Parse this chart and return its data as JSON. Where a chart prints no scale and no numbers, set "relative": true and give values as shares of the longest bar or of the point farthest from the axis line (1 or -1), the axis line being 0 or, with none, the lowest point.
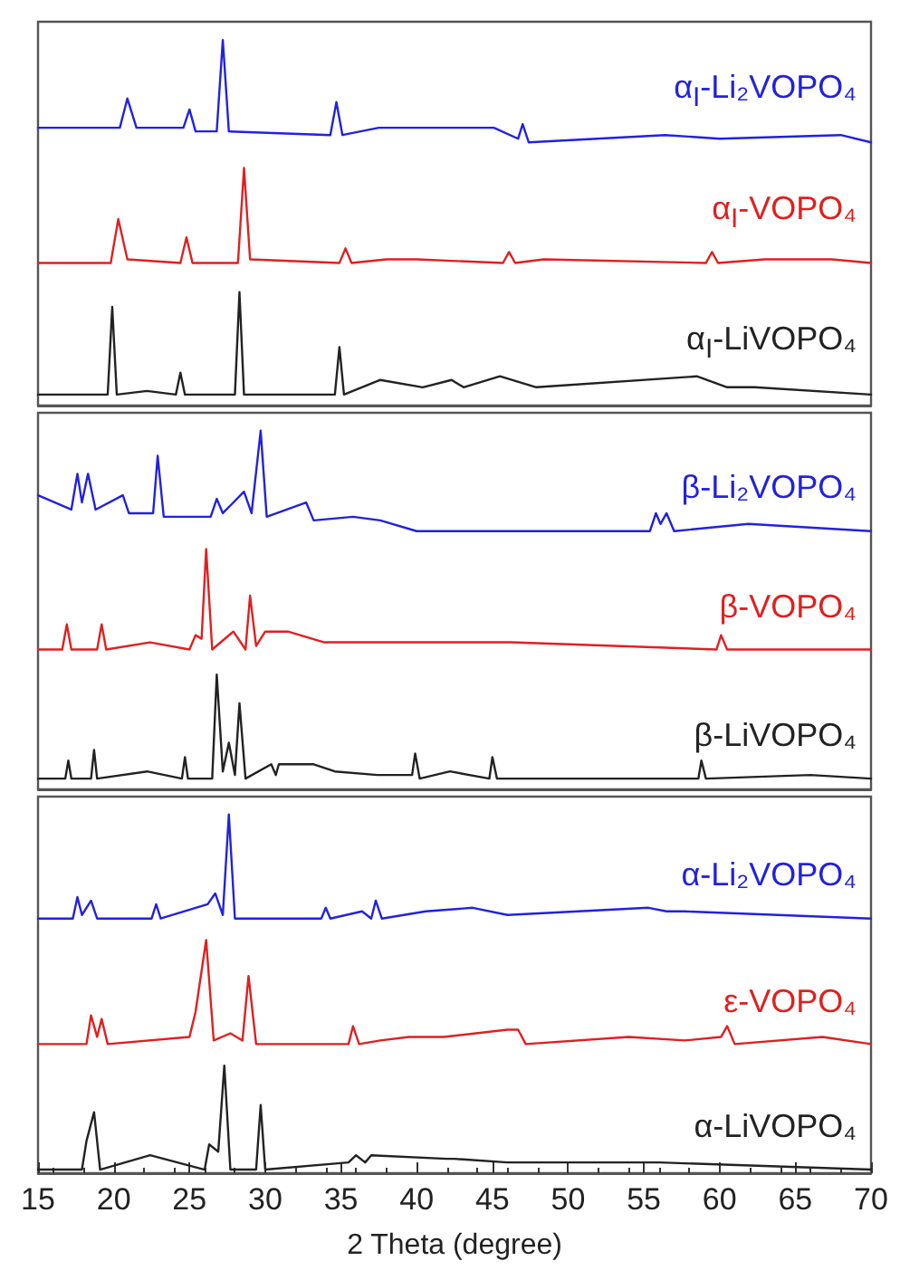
{
  "chart_data": [
    {
      "type": "line",
      "relative": true,
      "xlim": [
        15,
        70
      ],
      "xticks": [
        15,
        20,
        25,
        30,
        35,
        40,
        45,
        50,
        55,
        60,
        65,
        70
      ],
      "tick_labels": false,
      "marker": "none",
      "series": [
        {
          "name": "α$_{I}$-Li₂VOPO₄",
          "color": "#2222dd",
          "x": [
            15,
            20.4,
            20.9,
            21.5,
            24.6,
            25.0,
            25.4,
            26.8,
            27.2,
            27.6,
            34.3,
            34.7,
            35.1,
            37.5,
            39.0,
            43.9,
            45.1,
            46.7,
            47.0,
            47.4,
            56.4,
            60.0,
            68.0,
            70
          ],
          "values": [
            0.76,
            0.76,
            0.84,
            0.76,
            0.76,
            0.81,
            0.75,
            0.75,
            1.0,
            0.75,
            0.74,
            0.83,
            0.74,
            0.76,
            0.76,
            0.76,
            0.76,
            0.73,
            0.77,
            0.72,
            0.74,
            0.73,
            0.74,
            0.72
          ]
        },
        {
          "name": "α$_{I}$-VOPO₄",
          "color": "#e02020",
          "x": [
            15,
            19.8,
            20.3,
            20.9,
            24.4,
            24.8,
            25.2,
            28.2,
            28.6,
            29.0,
            34.9,
            35.3,
            35.7,
            38.0,
            40.0,
            45.7,
            46.1,
            46.5,
            48.4,
            59.1,
            59.5,
            59.9,
            63.0,
            67.4,
            70
          ],
          "values": [
            0.39,
            0.39,
            0.51,
            0.4,
            0.39,
            0.46,
            0.39,
            0.39,
            0.65,
            0.4,
            0.39,
            0.43,
            0.39,
            0.4,
            0.4,
            0.39,
            0.42,
            0.39,
            0.4,
            0.39,
            0.42,
            0.39,
            0.4,
            0.4,
            0.39
          ]
        },
        {
          "name": "α$_{I}$-LiVOPO₄",
          "color": "#222222",
          "x": [
            15,
            19.6,
            19.9,
            20.2,
            22.2,
            24.1,
            24.4,
            24.7,
            28.0,
            28.3,
            28.6,
            34.6,
            34.9,
            35.2,
            37.6,
            40.4,
            42.3,
            43.1,
            45.5,
            47.9,
            58.5,
            60.5,
            62.3,
            70
          ],
          "values": [
            0.03,
            0.03,
            0.27,
            0.03,
            0.04,
            0.03,
            0.09,
            0.03,
            0.03,
            0.31,
            0.03,
            0.03,
            0.16,
            0.03,
            0.07,
            0.05,
            0.07,
            0.05,
            0.08,
            0.05,
            0.08,
            0.05,
            0.05,
            0.03
          ]
        }
      ]
    },
    {
      "type": "line",
      "relative": true,
      "xlim": [
        15,
        70
      ],
      "xticks": [
        15,
        20,
        25,
        30,
        35,
        40,
        45,
        50,
        55,
        60,
        65,
        70
      ],
      "tick_labels": false,
      "marker": "none",
      "series": [
        {
          "name": "β-Li₂VOPO₄",
          "color": "#2222dd",
          "x": [
            15,
            17.2,
            17.6,
            17.9,
            18.3,
            18.8,
            20.6,
            21.0,
            22.6,
            22.9,
            23.3,
            26.4,
            26.8,
            27.2,
            28.6,
            29.1,
            29.7,
            30.1,
            32.7,
            33.2,
            35.8,
            37.6,
            40.0,
            55.4,
            55.8,
            56.1,
            56.5,
            57.0,
            61.9,
            70
          ],
          "values": [
            0.82,
            0.78,
            0.88,
            0.8,
            0.88,
            0.78,
            0.82,
            0.77,
            0.77,
            0.93,
            0.76,
            0.76,
            0.81,
            0.77,
            0.83,
            0.77,
            1.0,
            0.76,
            0.8,
            0.75,
            0.76,
            0.75,
            0.72,
            0.72,
            0.77,
            0.74,
            0.77,
            0.72,
            0.74,
            0.72
          ]
        },
        {
          "name": "β-VOPO₄",
          "color": "#e02020",
          "x": [
            15,
            16.6,
            16.9,
            17.2,
            18.9,
            19.2,
            19.5,
            22.4,
            25.0,
            25.4,
            25.8,
            26.1,
            26.5,
            27.9,
            28.7,
            29.0,
            29.4,
            30.0,
            31.5,
            33.9,
            41.0,
            46.2,
            59.8,
            60.1,
            60.5,
            70
          ],
          "values": [
            0.39,
            0.39,
            0.46,
            0.39,
            0.39,
            0.46,
            0.39,
            0.41,
            0.39,
            0.43,
            0.42,
            0.67,
            0.39,
            0.44,
            0.39,
            0.54,
            0.4,
            0.44,
            0.44,
            0.41,
            0.41,
            0.41,
            0.39,
            0.43,
            0.39,
            0.39
          ]
        },
        {
          "name": "β-LiVOPO₄",
          "color": "#222222",
          "x": [
            15,
            16.8,
            17.0,
            17.2,
            18.5,
            18.7,
            18.9,
            22.2,
            24.5,
            24.7,
            24.9,
            26.5,
            26.8,
            27.2,
            27.6,
            28.0,
            28.3,
            28.7,
            30.4,
            30.7,
            30.9,
            33.2,
            34.6,
            37.4,
            39.7,
            39.9,
            40.2,
            42.2,
            44.8,
            45.0,
            45.3,
            58.6,
            58.8,
            59.1,
            66.0,
            70
          ],
          "values": [
            0.03,
            0.03,
            0.08,
            0.03,
            0.03,
            0.11,
            0.03,
            0.05,
            0.03,
            0.09,
            0.03,
            0.03,
            0.32,
            0.05,
            0.13,
            0.04,
            0.24,
            0.03,
            0.07,
            0.04,
            0.07,
            0.07,
            0.05,
            0.04,
            0.04,
            0.1,
            0.03,
            0.05,
            0.03,
            0.09,
            0.03,
            0.03,
            0.08,
            0.03,
            0.04,
            0.03
          ]
        }
      ]
    },
    {
      "type": "line",
      "relative": true,
      "xlim": [
        15,
        70
      ],
      "xticks": [
        15,
        20,
        25,
        30,
        35,
        40,
        45,
        50,
        55,
        60,
        65,
        70
      ],
      "xlabel": "2 Theta (degree)",
      "marker": "none",
      "series": [
        {
          "name": "α-Li₂VOPO₄",
          "color": "#2222dd",
          "x": [
            15,
            17.3,
            17.6,
            17.9,
            18.5,
            18.9,
            22.5,
            22.8,
            23.1,
            26.2,
            26.7,
            27.2,
            27.6,
            28.0,
            33.7,
            34.0,
            34.3,
            36.4,
            37.0,
            37.3,
            37.7,
            40.6,
            43.7,
            46.0,
            55.3,
            56.5,
            57.7,
            70
          ],
          "values": [
            0.71,
            0.71,
            0.77,
            0.72,
            0.76,
            0.71,
            0.71,
            0.75,
            0.71,
            0.75,
            0.78,
            0.72,
            1.0,
            0.71,
            0.71,
            0.74,
            0.71,
            0.73,
            0.71,
            0.76,
            0.71,
            0.73,
            0.74,
            0.72,
            0.74,
            0.73,
            0.73,
            0.71
          ]
        },
        {
          "name": "ε-VOPO₄",
          "color": "#e02020",
          "x": [
            15,
            18.2,
            18.5,
            18.9,
            19.2,
            19.6,
            25.0,
            25.4,
            26.1,
            26.6,
            27.7,
            28.5,
            28.9,
            29.4,
            35.5,
            35.8,
            36.2,
            37.6,
            39.5,
            41.8,
            46.0,
            46.7,
            47.2,
            54.0,
            57.7,
            60.1,
            60.5,
            61.0,
            66.8,
            70
          ],
          "values": [
            0.36,
            0.36,
            0.44,
            0.38,
            0.43,
            0.36,
            0.38,
            0.45,
            0.65,
            0.37,
            0.39,
            0.37,
            0.55,
            0.36,
            0.36,
            0.41,
            0.36,
            0.37,
            0.38,
            0.38,
            0.4,
            0.4,
            0.36,
            0.38,
            0.37,
            0.38,
            0.41,
            0.36,
            0.38,
            0.36
          ]
        },
        {
          "name": "α-LiVOPO₄",
          "color": "#222222",
          "x": [
            15,
            17.9,
            18.2,
            18.7,
            19.1,
            22.4,
            26.0,
            26.3,
            26.9,
            27.3,
            27.7,
            29.4,
            29.7,
            30.0,
            35.5,
            36.0,
            36.6,
            37.0,
            42.0,
            42.5,
            46.0,
            47.0,
            56.0,
            70
          ],
          "values": [
            0.01,
            0.01,
            0.09,
            0.17,
            0.01,
            0.05,
            0.01,
            0.08,
            0.06,
            0.3,
            0.01,
            0.01,
            0.19,
            0.01,
            0.03,
            0.05,
            0.03,
            0.05,
            0.04,
            0.04,
            0.03,
            0.03,
            0.03,
            0.01
          ]
        }
      ]
    }
  ]
}
